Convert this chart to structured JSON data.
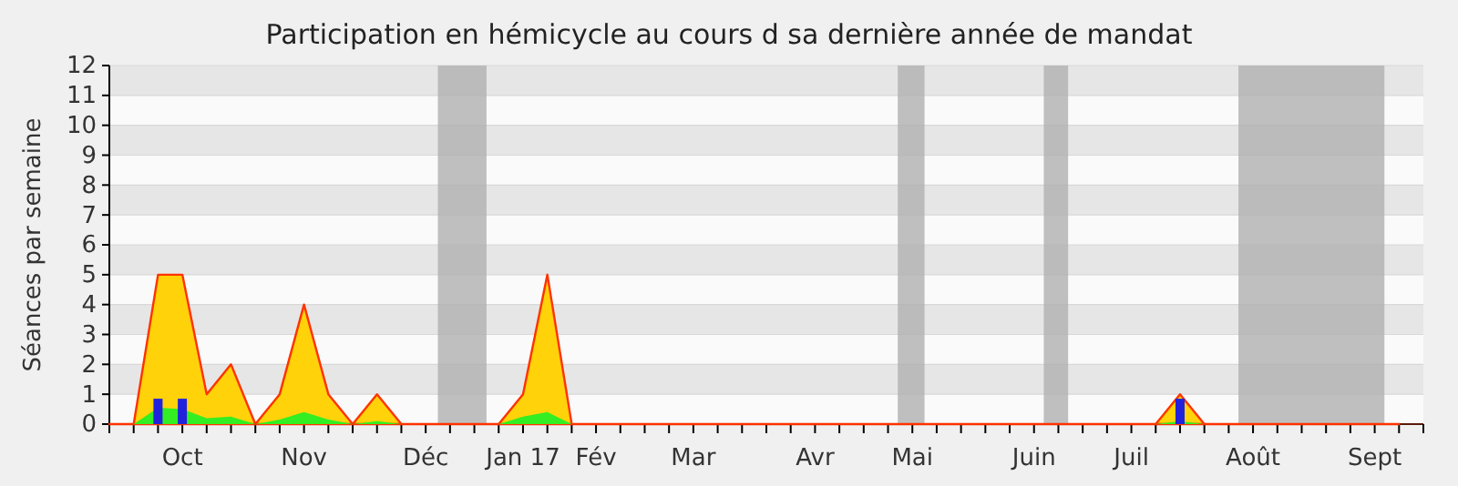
{
  "chart_data": {
    "type": "area",
    "title": "Participation en hémicycle au cours d sa dernière année de mandat",
    "ylabel": "Séances par semaine",
    "categories": [
      null,
      null,
      null,
      "Oct",
      null,
      null,
      null,
      null,
      "Nov",
      null,
      null,
      null,
      null,
      "Déc",
      null,
      null,
      null,
      "Jan 17",
      null,
      null,
      "Fév",
      null,
      null,
      null,
      "Mar",
      null,
      null,
      null,
      null,
      "Avr",
      null,
      null,
      null,
      "Mai",
      null,
      null,
      null,
      null,
      "Juin",
      null,
      null,
      null,
      "Juil",
      null,
      null,
      null,
      null,
      "Août",
      null,
      null,
      null,
      null,
      "Sept",
      null
    ],
    "series": [
      {
        "color": "#ffd20a",
        "values": [
          0,
          0,
          5,
          5,
          1,
          2,
          0,
          1,
          4,
          1,
          0,
          1,
          0,
          0,
          0,
          0,
          0,
          1,
          5,
          0,
          0,
          0,
          0,
          0,
          0,
          0,
          0,
          0,
          0,
          0,
          0,
          0,
          0,
          0,
          0,
          0,
          0,
          0,
          0,
          0,
          0,
          0,
          0,
          0,
          1,
          0,
          0,
          0,
          0,
          0,
          0,
          0,
          0,
          0
        ]
      },
      {
        "color": "#33ee22",
        "values": [
          0,
          0,
          0.55,
          0.5,
          0.2,
          0.25,
          0,
          0.15,
          0.4,
          0.15,
          0,
          0.1,
          0,
          0,
          0,
          0,
          0,
          0.25,
          0.4,
          0,
          0,
          0,
          0,
          0,
          0,
          0,
          0,
          0,
          0,
          0,
          0,
          0,
          0,
          0,
          0,
          0,
          0,
          0,
          0,
          0,
          0,
          0,
          0,
          0,
          0.1,
          0,
          0,
          0,
          0,
          0,
          0,
          0,
          0,
          0
        ]
      },
      {
        "type": "bar",
        "color": "#2222dd",
        "values": [
          null,
          null,
          0.85,
          0.85,
          null,
          null,
          null,
          null,
          null,
          null,
          null,
          null,
          null,
          null,
          null,
          null,
          null,
          null,
          null,
          null,
          null,
          null,
          null,
          null,
          null,
          null,
          null,
          null,
          null,
          null,
          null,
          null,
          null,
          null,
          null,
          null,
          null,
          null,
          null,
          null,
          null,
          null,
          null,
          null,
          0.85,
          null,
          null,
          null,
          null,
          null,
          null,
          null,
          null,
          null
        ]
      }
    ],
    "ylim": [
      0,
      12
    ],
    "yticks": [
      0,
      1,
      2,
      3,
      4,
      5,
      6,
      7,
      8,
      9,
      10,
      11,
      12
    ],
    "grid": "y"
  }
}
